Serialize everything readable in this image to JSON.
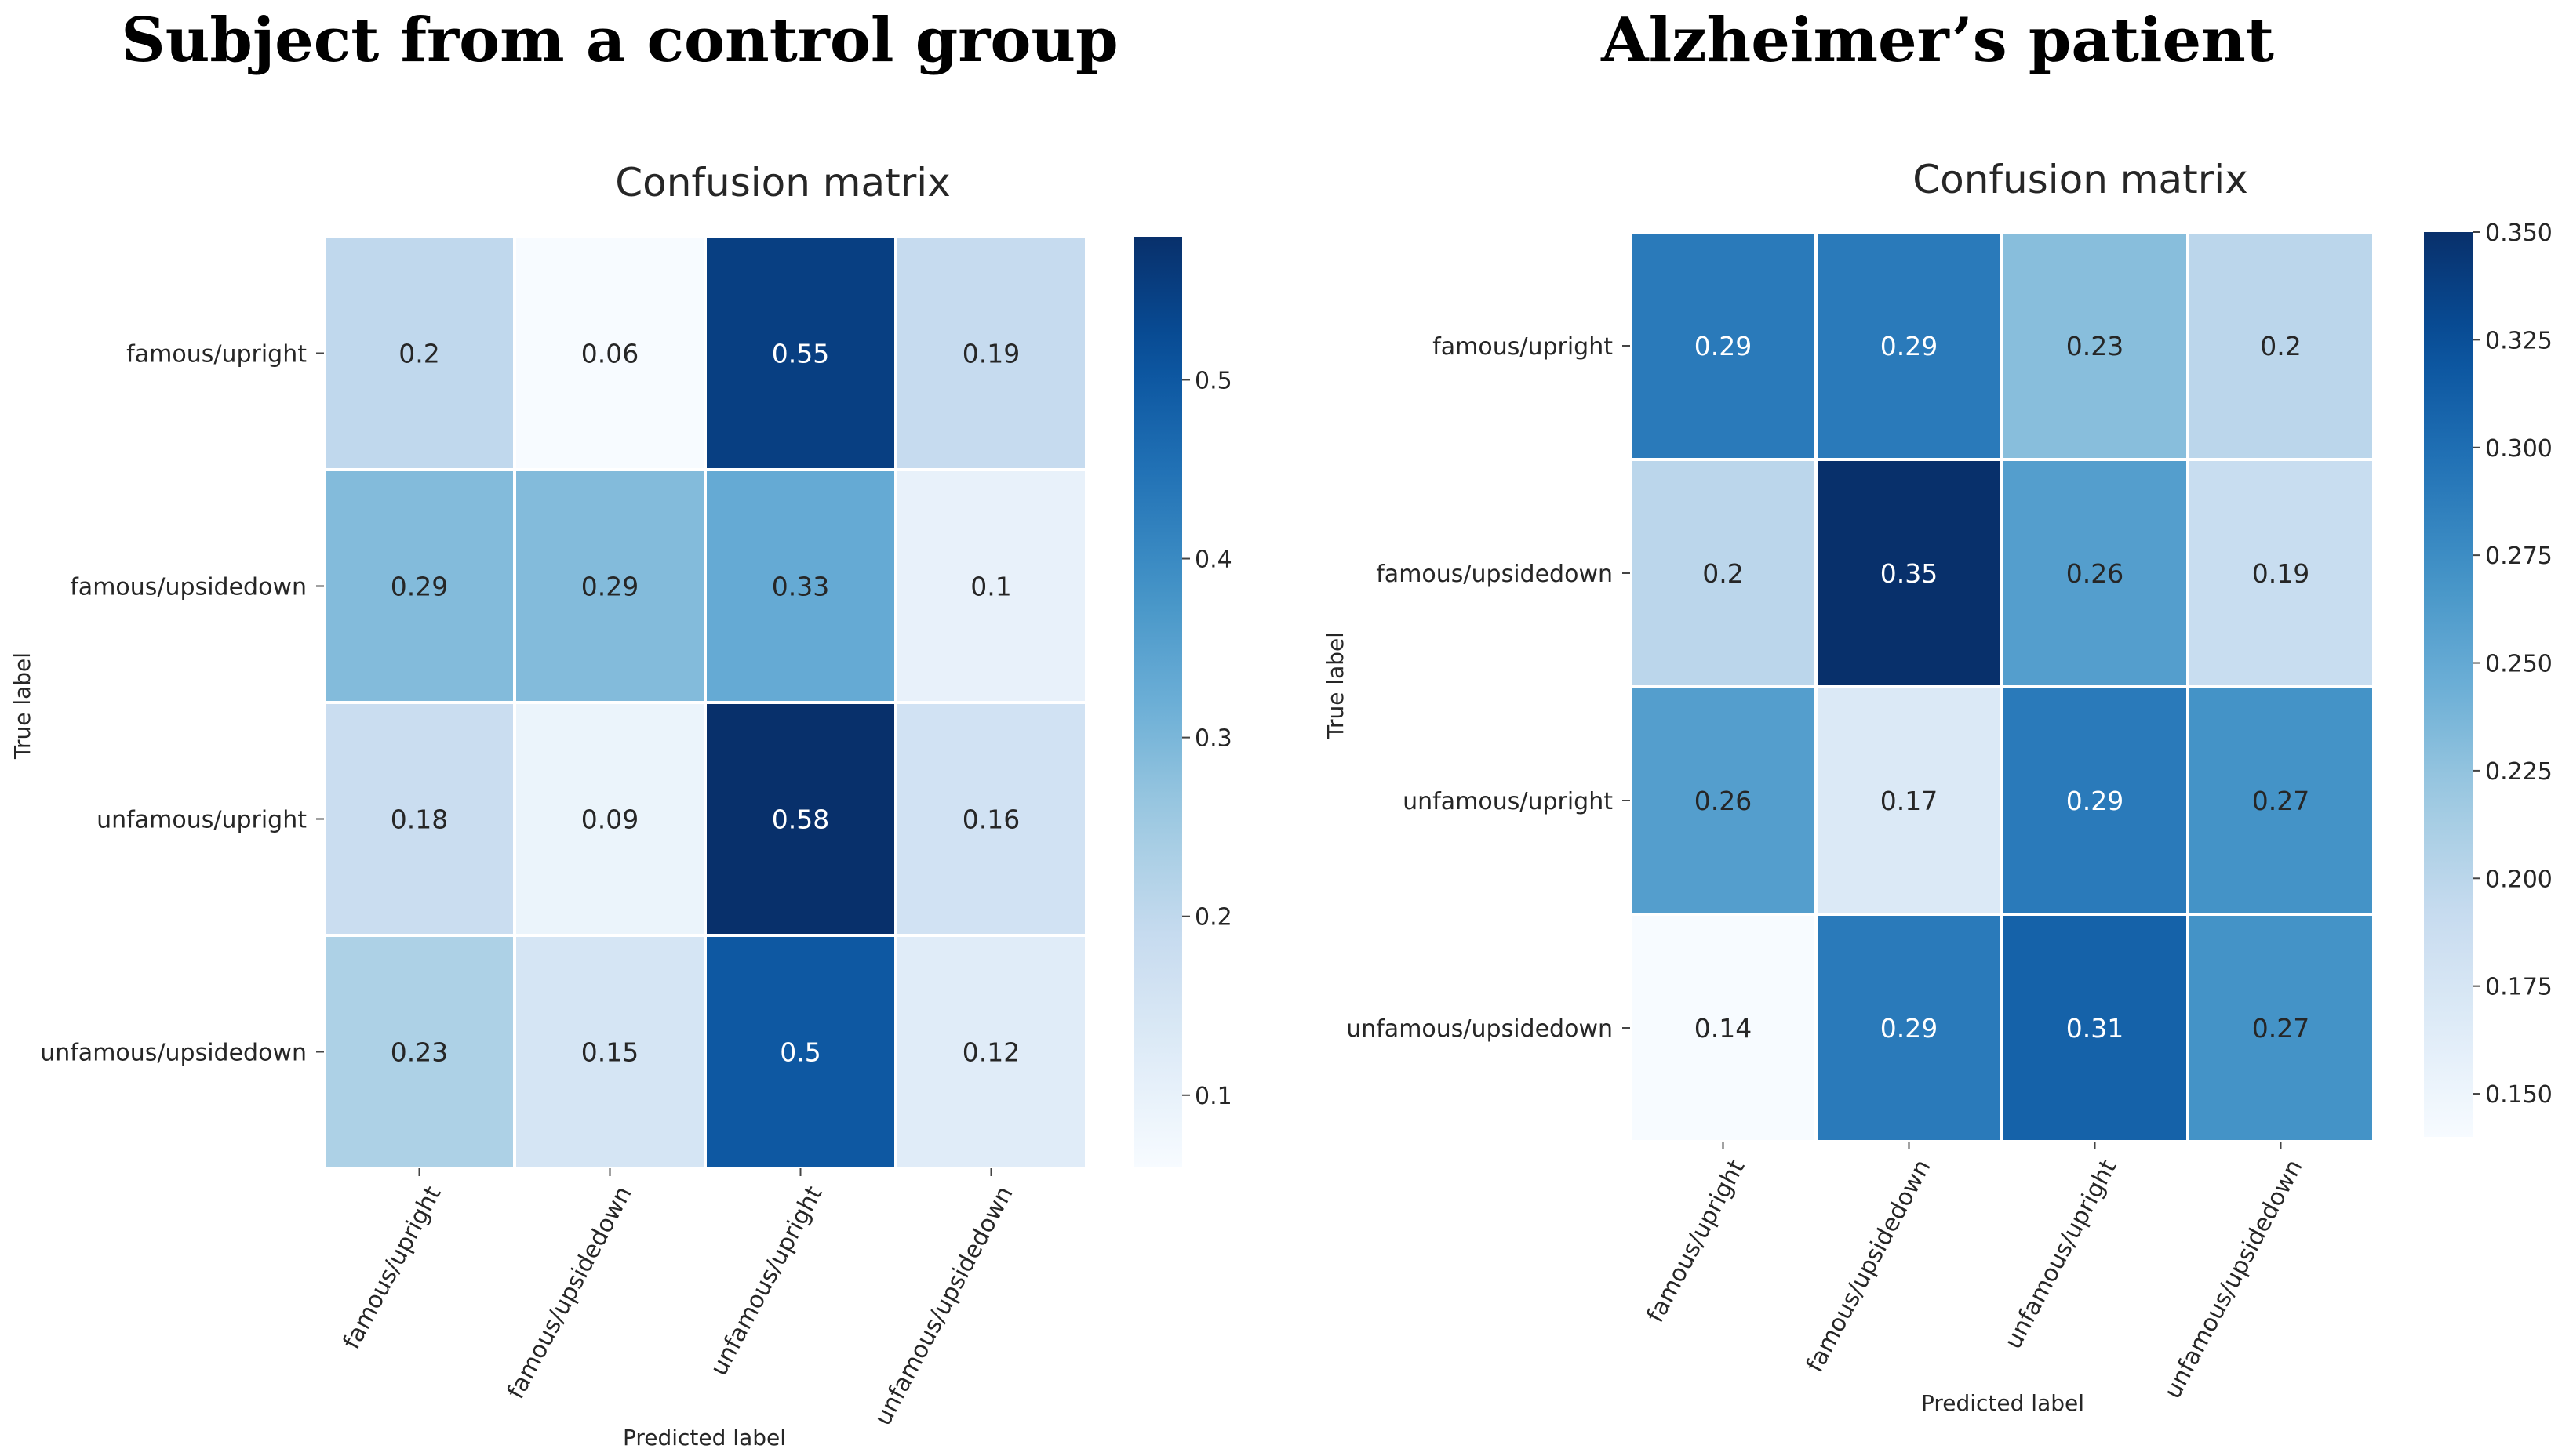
{
  "figure": {
    "panel_titles": [
      "Subject from a control group",
      "Alzheimer’s patient"
    ]
  },
  "chart_data": [
    {
      "type": "heatmap",
      "panel_title": "Subject from a control group",
      "title": "Confusion matrix",
      "xlabel": "Predicted label",
      "ylabel": "True label",
      "row_labels": [
        "famous/upright",
        "famous/upsidedown",
        "unfamous/upright",
        "unfamous/upsidedown"
      ],
      "col_labels": [
        "famous/upright",
        "famous/upsidedown",
        "unfamous/upright",
        "unfamous/upsidedown"
      ],
      "values": [
        [
          0.2,
          0.06,
          0.55,
          0.19
        ],
        [
          0.29,
          0.29,
          0.33,
          0.1
        ],
        [
          0.18,
          0.09,
          0.58,
          0.16
        ],
        [
          0.23,
          0.15,
          0.5,
          0.12
        ]
      ],
      "colormap": "Blues",
      "vmin": 0.06,
      "vmax": 0.58,
      "colorbar_ticks": [
        0.1,
        0.2,
        0.3,
        0.4,
        0.5
      ],
      "colorbar_tick_labels": [
        "0.1",
        "0.2",
        "0.3",
        "0.4",
        "0.5"
      ]
    },
    {
      "type": "heatmap",
      "panel_title": "Alzheimer’s patient",
      "title": "Confusion matrix",
      "xlabel": "Predicted label",
      "ylabel": "True label",
      "row_labels": [
        "famous/upright",
        "famous/upsidedown",
        "unfamous/upright",
        "unfamous/upsidedown"
      ],
      "col_labels": [
        "famous/upright",
        "famous/upsidedown",
        "unfamous/upright",
        "unfamous/upsidedown"
      ],
      "values": [
        [
          0.29,
          0.29,
          0.23,
          0.2
        ],
        [
          0.2,
          0.35,
          0.26,
          0.19
        ],
        [
          0.26,
          0.17,
          0.29,
          0.27
        ],
        [
          0.14,
          0.29,
          0.31,
          0.27
        ]
      ],
      "colormap": "Blues",
      "vmin": 0.14,
      "vmax": 0.35,
      "colorbar_ticks": [
        0.15,
        0.175,
        0.2,
        0.225,
        0.25,
        0.275,
        0.3,
        0.325,
        0.35
      ],
      "colorbar_tick_labels": [
        "0.150",
        "0.175",
        "0.200",
        "0.225",
        "0.250",
        "0.275",
        "0.300",
        "0.325",
        "0.350"
      ]
    }
  ]
}
